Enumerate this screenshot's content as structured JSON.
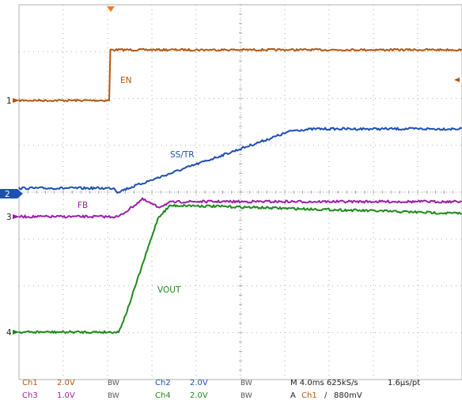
{
  "colors": {
    "ch1": "#b5560f",
    "ch2": "#1d4fb4",
    "ch3": "#9a1fa8",
    "ch4": "#1d8a1d",
    "grid": "#9a9a9a",
    "frame": "#b0b0b0",
    "trigger": "#ff7a18",
    "status_text": "#222222"
  },
  "traces": {
    "ch1": {
      "label": "EN",
      "marker": "1"
    },
    "ch2": {
      "label": "SS/TR",
      "marker": "2"
    },
    "ch3": {
      "label": "FB",
      "marker": "3"
    },
    "ch4": {
      "label": "VOUT",
      "marker": "4"
    }
  },
  "status": {
    "row1": {
      "ch1": "Ch1",
      "ch1_scale": "2.0V",
      "ch1_bw": "BW",
      "ch2": "Ch2",
      "ch2_scale": "2.0V",
      "ch2_bw": "BW",
      "timebase": "M 4.0ms 625kS/s",
      "resolution": "1.6µs/pt"
    },
    "row2": {
      "ch3": "Ch3",
      "ch3_scale": "1.0V",
      "ch3_bw": "BW",
      "ch4": "Ch4",
      "ch4_scale": "2.0V",
      "ch4_bw": "BW",
      "trigger_prefix": "A",
      "trigger_source": "Ch1",
      "trigger_slope": "∕",
      "trigger_level": "880mV"
    }
  }
}
